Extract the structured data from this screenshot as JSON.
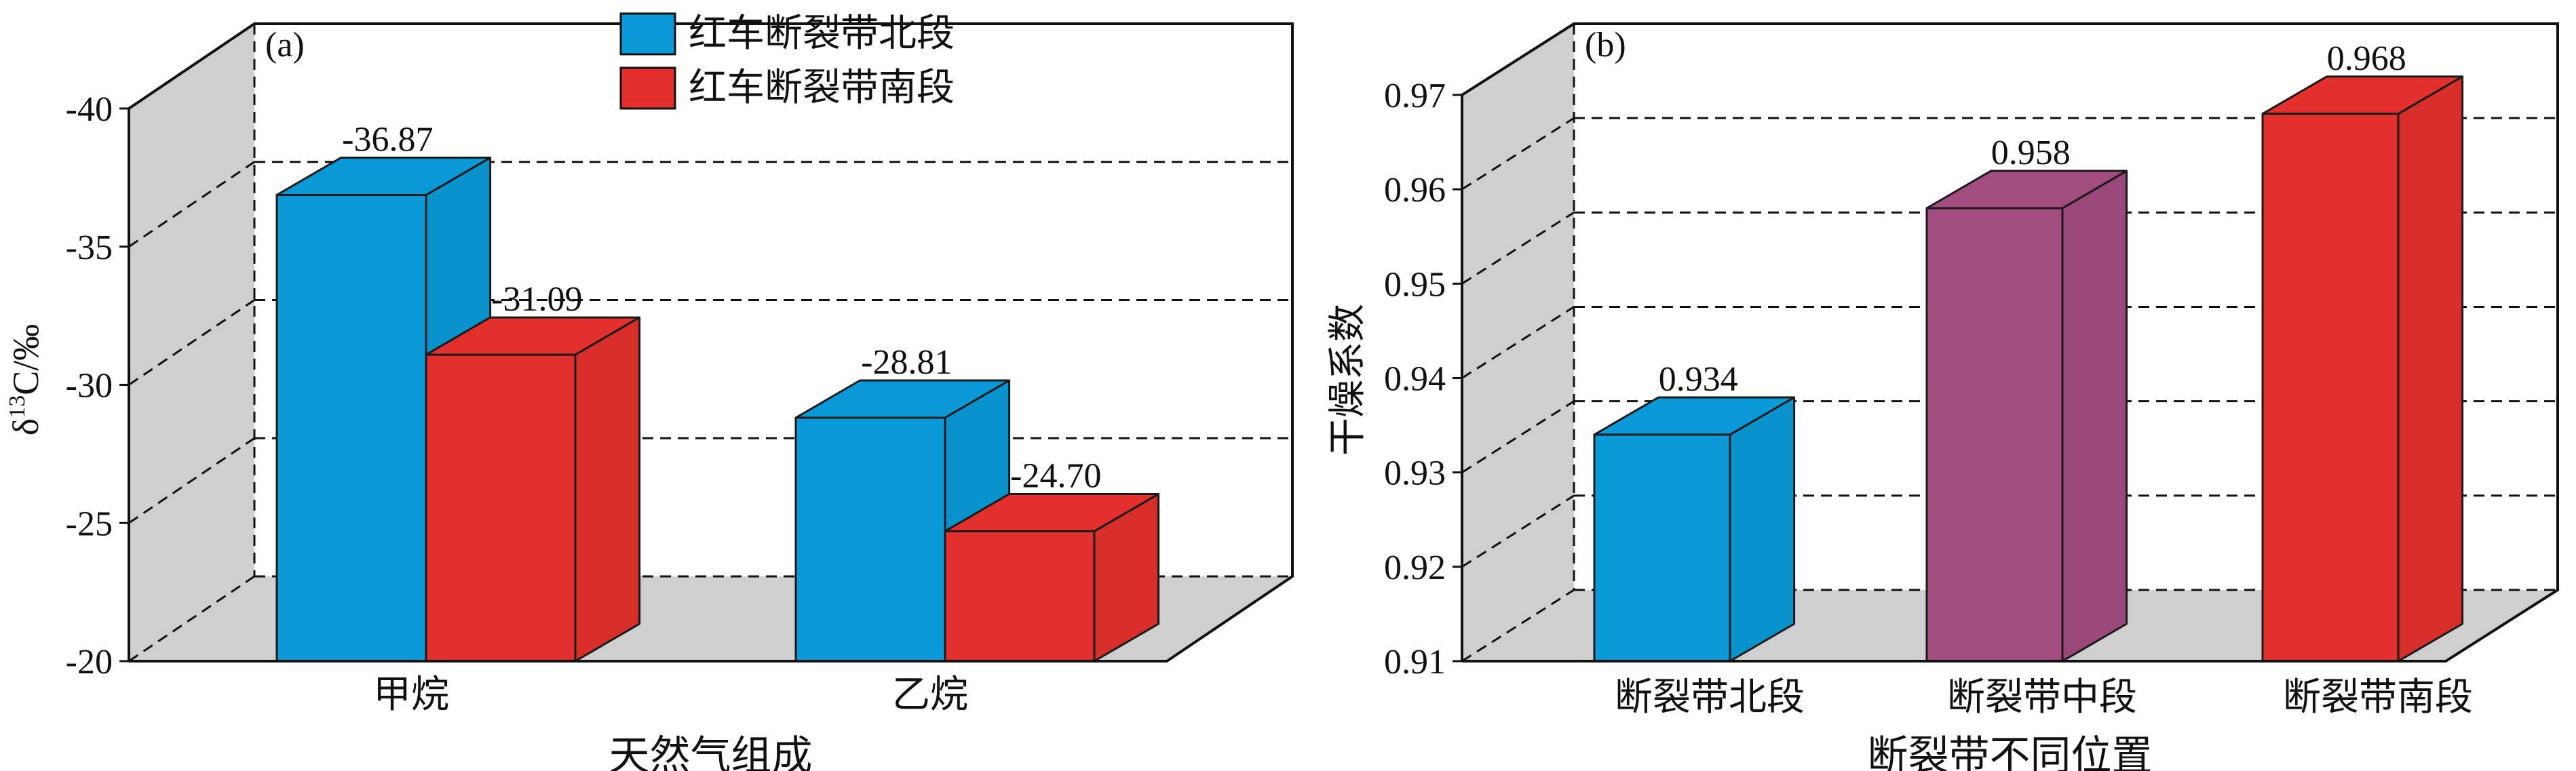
{
  "chart_data": [
    {
      "panel_label": "(a)",
      "type": "bar",
      "categories": [
        "甲烷",
        "乙烷"
      ],
      "series": [
        {
          "name": "红车断裂带北段",
          "color": "#0a9ad7",
          "values": [
            -36.87,
            -28.81
          ],
          "labels": [
            "-36.87",
            "-28.81"
          ]
        },
        {
          "name": "红车断裂带南段",
          "color": "#e3302c",
          "values": [
            -31.09,
            -24.7
          ],
          "labels": [
            "-31.09",
            "-24.70"
          ]
        }
      ],
      "xlabel": "天然气组成",
      "ylabel": "δ13C/‰",
      "ylim": [
        -20,
        -40
      ],
      "yticks": [
        "-40",
        "-35",
        "-30",
        "-25",
        "-20"
      ],
      "legend": "top-center",
      "grid": true
    },
    {
      "panel_label": "(b)",
      "type": "bar",
      "categories": [
        "断裂带北段",
        "断裂带中段",
        "断裂带南段"
      ],
      "values": [
        0.934,
        0.958,
        0.968
      ],
      "labels": [
        "0.934",
        "0.958",
        "0.968"
      ],
      "colors": [
        "#0a9ad7",
        "#a24c80",
        "#e3302c"
      ],
      "xlabel": "断裂带不同位置",
      "ylabel": "干燥系数",
      "ylim": [
        0.91,
        0.97
      ],
      "yticks": [
        "0.97",
        "0.96",
        "0.95",
        "0.94",
        "0.93",
        "0.92",
        "0.91"
      ],
      "grid": true
    }
  ]
}
